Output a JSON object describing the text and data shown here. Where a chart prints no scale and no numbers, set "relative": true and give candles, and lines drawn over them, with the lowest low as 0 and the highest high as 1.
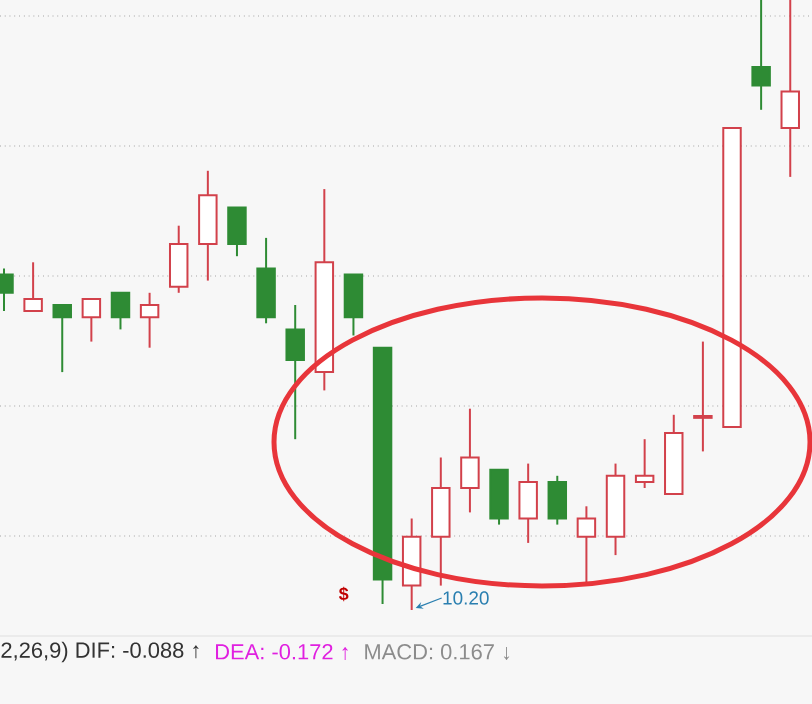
{
  "chart_data": {
    "type": "candlestick",
    "relative": true,
    "grid": true,
    "categories": [
      null,
      null,
      null,
      null,
      null,
      null,
      null,
      null,
      null,
      null,
      null,
      null,
      null,
      null,
      null,
      null,
      null,
      null,
      null,
      null,
      null,
      null,
      null,
      null,
      null,
      null,
      null,
      null
    ],
    "ohlc": [
      [
        0.55,
        0.56,
        0.49,
        0.52
      ],
      [
        0.49,
        0.57,
        0.49,
        0.51
      ],
      [
        0.5,
        0.5,
        0.39,
        0.48
      ],
      [
        0.48,
        0.51,
        0.44,
        0.51
      ],
      [
        0.52,
        0.52,
        0.46,
        0.48
      ],
      [
        0.48,
        0.52,
        0.43,
        0.5
      ],
      [
        0.53,
        0.63,
        0.52,
        0.6
      ],
      [
        0.6,
        0.72,
        0.54,
        0.68
      ],
      [
        0.66,
        0.66,
        0.58,
        0.6
      ],
      [
        0.56,
        0.61,
        0.47,
        0.48
      ],
      [
        0.46,
        0.5,
        0.28,
        0.41
      ],
      [
        0.39,
        0.69,
        0.36,
        0.57
      ],
      [
        0.55,
        0.55,
        0.45,
        0.48
      ],
      [
        0.43,
        0.43,
        0.01,
        0.05
      ],
      [
        0.04,
        0.15,
        0.0,
        0.12
      ],
      [
        0.12,
        0.25,
        0.04,
        0.2
      ],
      [
        0.2,
        0.33,
        0.16,
        0.25
      ],
      [
        0.23,
        0.23,
        0.14,
        0.15
      ],
      [
        0.15,
        0.24,
        0.11,
        0.21
      ],
      [
        0.21,
        0.22,
        0.14,
        0.15
      ],
      [
        0.12,
        0.17,
        0.04,
        0.15
      ],
      [
        0.12,
        0.24,
        0.09,
        0.22
      ],
      [
        0.21,
        0.28,
        0.2,
        0.22
      ],
      [
        0.19,
        0.32,
        0.19,
        0.29
      ],
      [
        0.315,
        0.44,
        0.26,
        0.318
      ],
      [
        0.3,
        0.79,
        0.3,
        0.79
      ],
      [
        0.89,
        1.0,
        0.82,
        0.86
      ],
      [
        0.79,
        1.0,
        0.71,
        0.85
      ]
    ],
    "annotations": [
      "10.20",
      "$",
      "2,26,9)  DIF: -0.088 ↑",
      "DEA: -0.172 ↑",
      "MACD: 0.167 ↓"
    ]
  }
}
